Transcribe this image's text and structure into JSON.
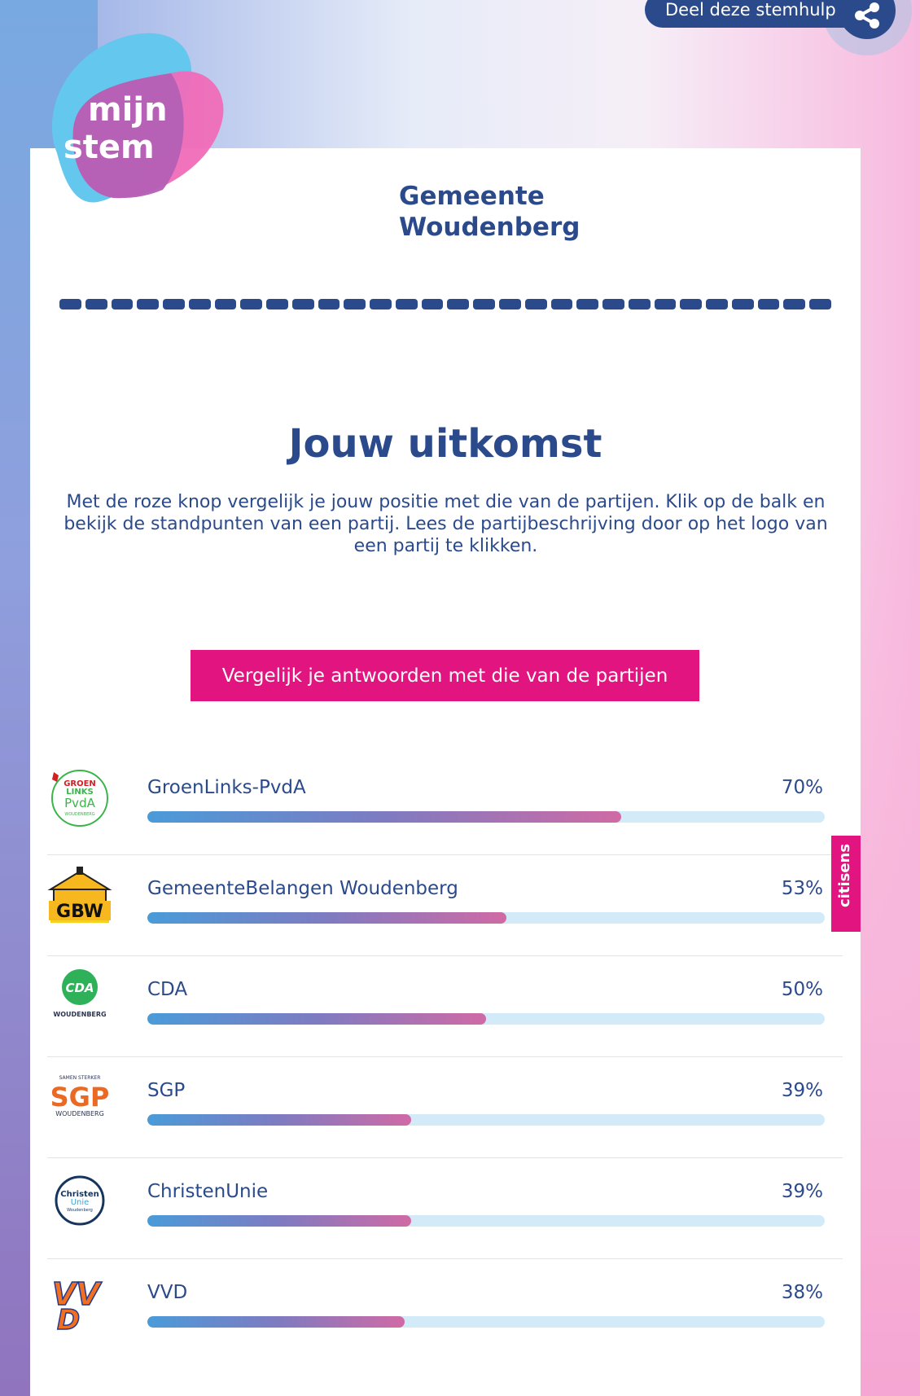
{
  "share": {
    "label": "Deel deze stemhulp"
  },
  "logo": {
    "line1": "mijn",
    "line2": "stem"
  },
  "header": {
    "municipality_line1": "Gemeente",
    "municipality_line2": "Woudenberg"
  },
  "colors": {
    "primary": "#2b4a8c",
    "accent": "#e2147f",
    "track": "#d3ebf8"
  },
  "main": {
    "title": "Jouw uitkomst",
    "intro": "Met de roze knop vergelijk je jouw positie met die van de partijen. Klik op de balk en bekijk de standpunten van een partij. Lees de partijbeschrijving door op het logo van een partij te klikken.",
    "compare_button": "Vergelijk je antwoorden met die van de partijen"
  },
  "parties": [
    {
      "name": "GroenLinks-PvdA",
      "percent": "70%",
      "value": 70,
      "logo": "groenlinks-pvda-logo",
      "logo_text": [
        "GROEN",
        "LINKS",
        "PvdA",
        "WOUDENBERG"
      ]
    },
    {
      "name": "GemeenteBelangen Woudenberg",
      "percent": "53%",
      "value": 53,
      "logo": "gbw-logo",
      "logo_text": [
        "GBW"
      ]
    },
    {
      "name": "CDA",
      "percent": "50%",
      "value": 50,
      "logo": "cda-logo",
      "logo_text": [
        "CDA",
        "WOUDENBERG"
      ]
    },
    {
      "name": "SGP",
      "percent": "39%",
      "value": 39,
      "logo": "sgp-logo",
      "logo_text": [
        "SAMEN STERKER",
        "SGP",
        "WOUDENBERG"
      ]
    },
    {
      "name": "ChristenUnie",
      "percent": "39%",
      "value": 39,
      "logo": "christenunie-logo",
      "logo_text": [
        "Christen",
        "Unie",
        "Woudenberg"
      ]
    },
    {
      "name": "VVD",
      "percent": "38%",
      "value": 38,
      "logo": "vvd-logo",
      "logo_text": [
        "VVD"
      ]
    }
  ],
  "side_tab": {
    "label": "citisens"
  }
}
